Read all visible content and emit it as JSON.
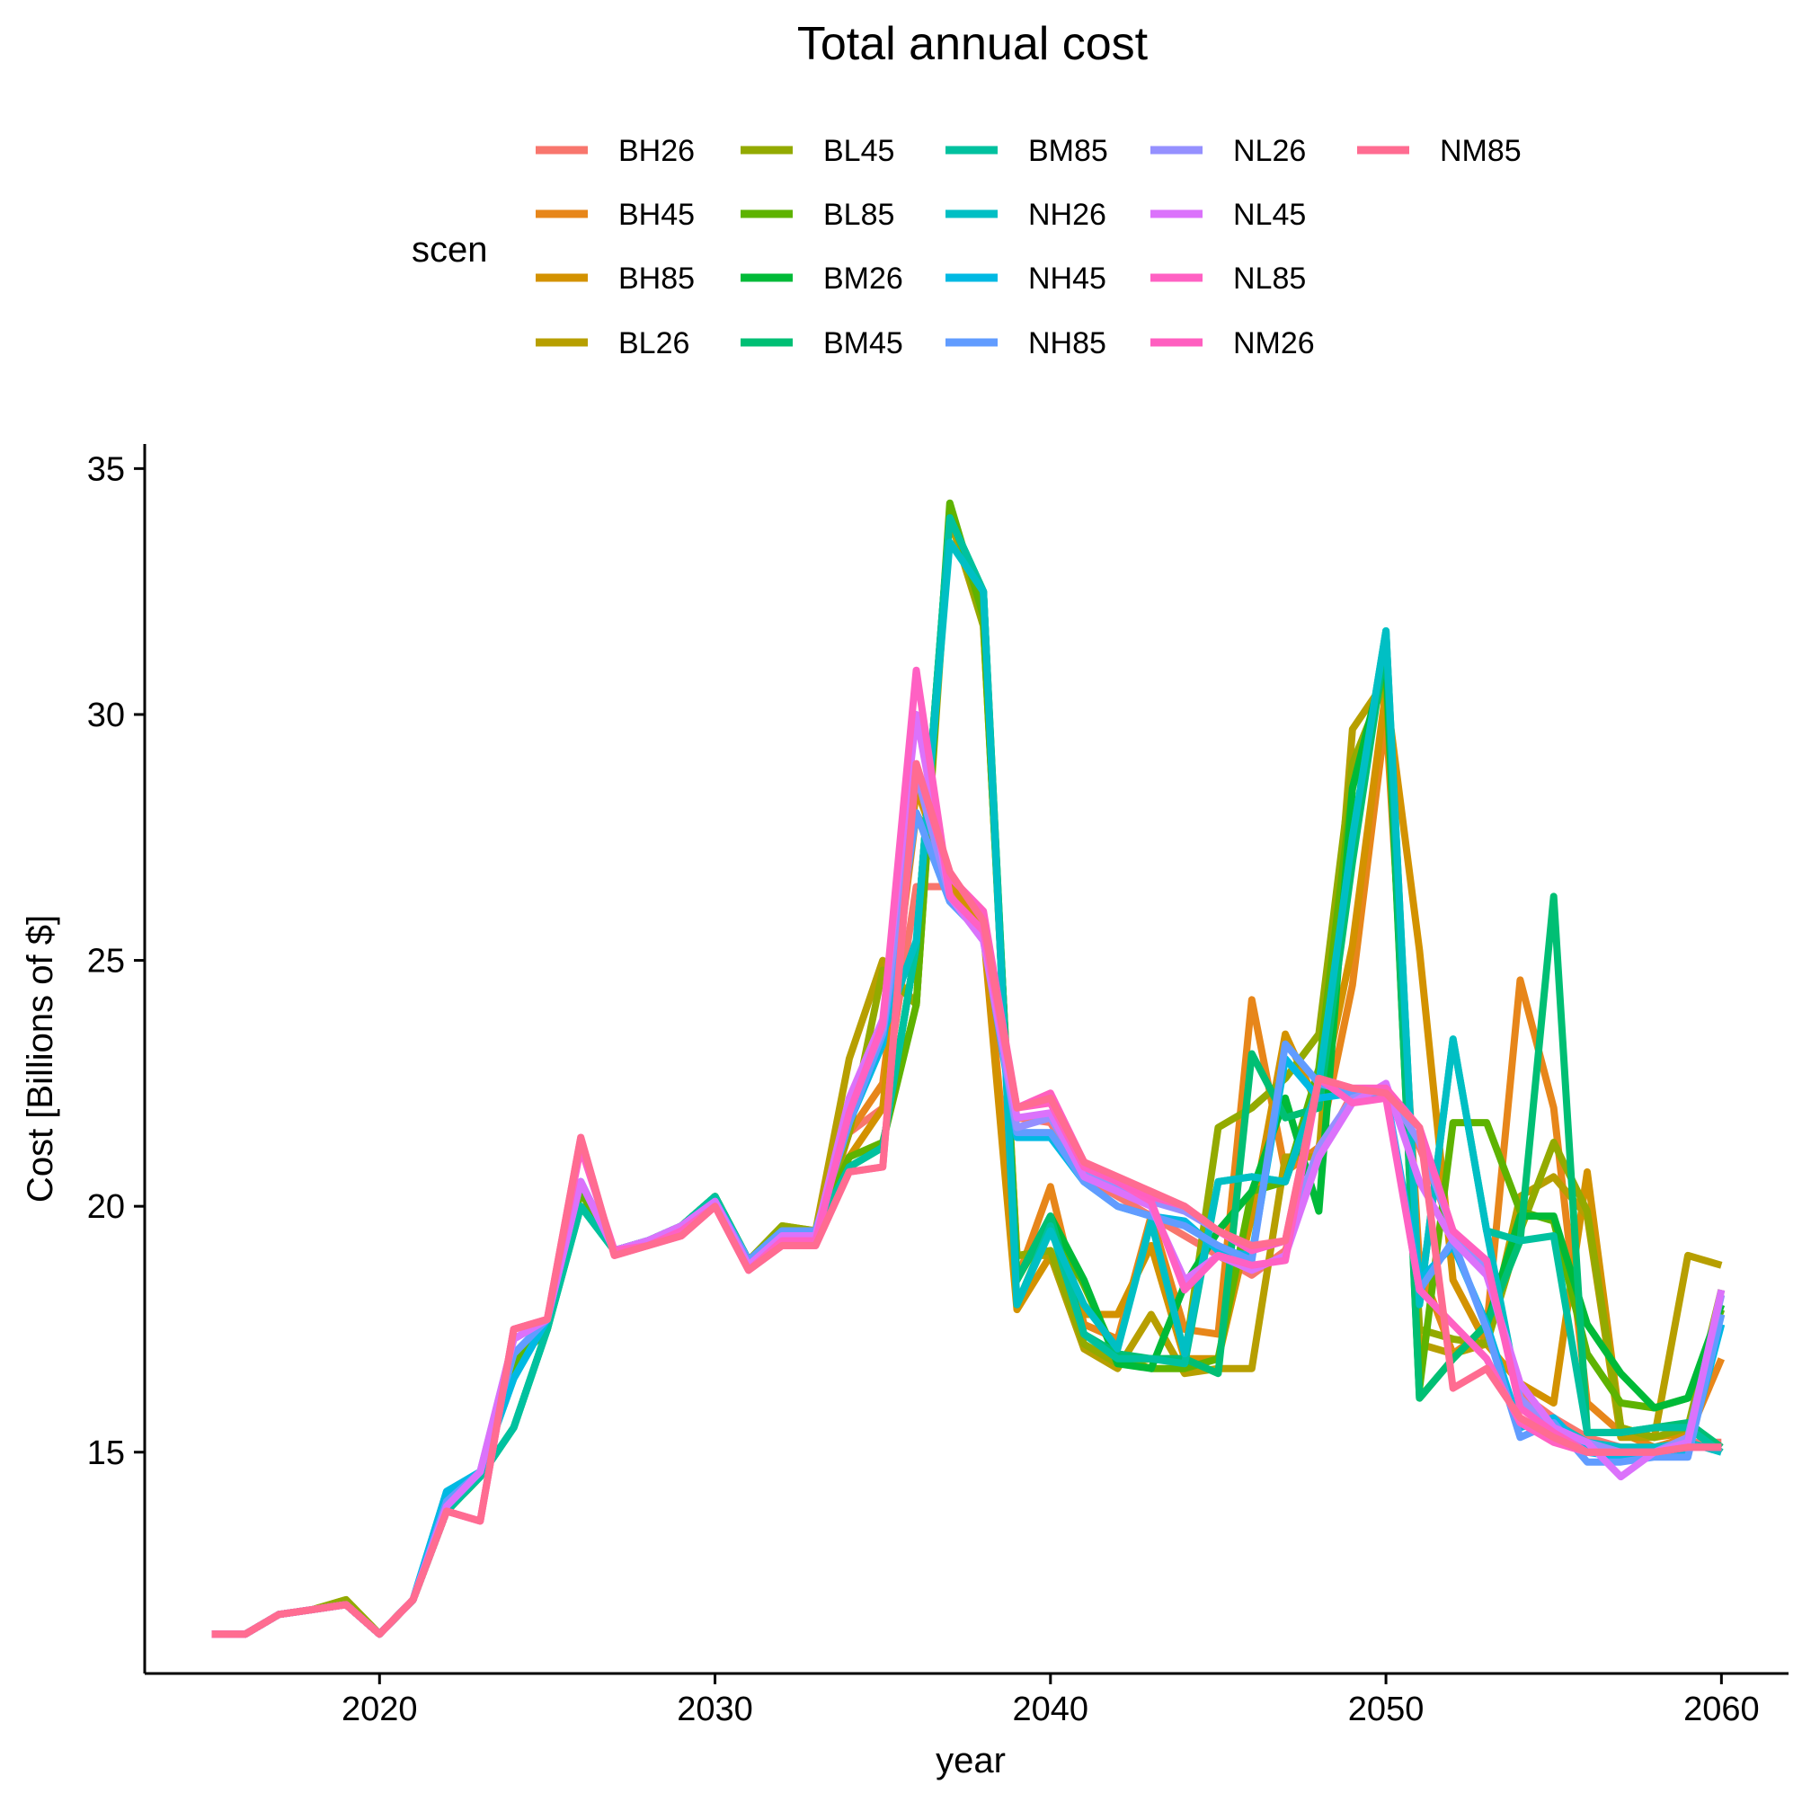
{
  "chart_data": {
    "type": "line",
    "title": "Total annual cost",
    "xlabel": "year",
    "ylabel": "Cost [Billions of $]",
    "xlim": [
      2013,
      2062
    ],
    "ylim": [
      10.5,
      35.5
    ],
    "xticks": [
      2020,
      2030,
      2040,
      2050,
      2060
    ],
    "yticks": [
      15,
      20,
      25,
      30,
      35
    ],
    "grid": false,
    "legend_title": "scen",
    "legend_placement": "top",
    "x": [
      2015,
      2016,
      2017,
      2018,
      2019,
      2020,
      2021,
      2022,
      2023,
      2024,
      2025,
      2026,
      2027,
      2028,
      2029,
      2030,
      2031,
      2032,
      2033,
      2034,
      2035,
      2036,
      2037,
      2038,
      2039,
      2040,
      2041,
      2042,
      2043,
      2044,
      2045,
      2046,
      2047,
      2048,
      2049,
      2050,
      2051,
      2052,
      2053,
      2054,
      2055,
      2056,
      2057,
      2058,
      2059,
      2060
    ],
    "series": [
      {
        "name": "BH26",
        "color": "#F8766D",
        "values": [
          11.3,
          11.3,
          11.7,
          11.8,
          11.9,
          11.3,
          12.0,
          13.8,
          14.5,
          16.8,
          17.5,
          20.3,
          19.1,
          19.2,
          19.5,
          20.0,
          18.9,
          19.3,
          19.3,
          21.5,
          22.0,
          26.5,
          26.5,
          25.8,
          21.8,
          21.7,
          20.6,
          20.2,
          19.8,
          19.4,
          19.0,
          18.6,
          19.1,
          21.0,
          22.3,
          22.3,
          21.2,
          19.5,
          18.8,
          16.2,
          15.7,
          15.3,
          15.1,
          15.1,
          15.2,
          15.2
        ]
      },
      {
        "name": "BH45",
        "color": "#E7861A",
        "values": [
          11.3,
          11.3,
          11.7,
          11.8,
          11.9,
          11.3,
          12.0,
          13.8,
          14.5,
          16.8,
          17.5,
          20.3,
          19.1,
          19.2,
          19.5,
          20.2,
          18.9,
          19.3,
          19.3,
          21.5,
          22.5,
          28.0,
          26.6,
          25.8,
          18.5,
          20.4,
          17.6,
          17.3,
          19.8,
          17.5,
          17.4,
          24.2,
          20.7,
          21.2,
          24.5,
          30.0,
          18.8,
          17.0,
          17.5,
          24.6,
          22.0,
          16.0,
          15.4,
          15.1,
          15.3,
          16.9
        ]
      },
      {
        "name": "BH85",
        "color": "#D39200",
        "values": [
          11.3,
          11.3,
          11.7,
          11.8,
          11.9,
          11.3,
          12.0,
          13.8,
          14.5,
          16.8,
          17.5,
          20.3,
          19.1,
          19.2,
          19.5,
          20.2,
          18.9,
          19.3,
          19.3,
          21.0,
          22.0,
          28.5,
          26.6,
          25.6,
          17.9,
          19.0,
          17.8,
          17.8,
          19.2,
          16.9,
          16.9,
          19.8,
          23.5,
          22.0,
          25.3,
          30.5,
          25.2,
          18.5,
          17.2,
          16.4,
          16.0,
          20.7,
          15.5,
          15.3,
          15.4,
          17.8
        ]
      },
      {
        "name": "BL26",
        "color": "#B79F00",
        "values": [
          11.3,
          11.3,
          11.7,
          11.8,
          12.0,
          11.3,
          12.0,
          13.8,
          14.5,
          16.8,
          17.5,
          20.3,
          19.1,
          19.3,
          19.6,
          20.2,
          18.9,
          19.6,
          19.5,
          23.0,
          25.0,
          24.1,
          34.0,
          31.8,
          19.0,
          19.0,
          17.1,
          16.7,
          17.8,
          16.6,
          16.7,
          16.7,
          21.0,
          21.0,
          29.7,
          30.7,
          17.2,
          17.0,
          17.2,
          20.2,
          20.6,
          19.8,
          15.3,
          15.3,
          19.0,
          18.8
        ]
      },
      {
        "name": "BL45",
        "color": "#93AA00",
        "values": [
          11.3,
          11.3,
          11.7,
          11.8,
          12.0,
          11.3,
          12.0,
          13.8,
          14.5,
          16.8,
          17.5,
          20.3,
          19.1,
          19.3,
          19.6,
          20.2,
          18.9,
          19.6,
          19.5,
          21.5,
          24.8,
          24.1,
          34.2,
          31.8,
          19.0,
          19.1,
          17.2,
          16.8,
          16.9,
          16.9,
          21.6,
          22.0,
          22.6,
          23.5,
          29.0,
          30.7,
          17.5,
          17.3,
          17.2,
          19.5,
          21.3,
          19.9,
          15.5,
          15.3,
          15.5,
          18.3
        ]
      },
      {
        "name": "BL85",
        "color": "#5EB300",
        "values": [
          11.3,
          11.3,
          11.7,
          11.8,
          11.9,
          11.3,
          12.0,
          13.8,
          14.5,
          16.8,
          17.5,
          20.3,
          19.1,
          19.3,
          19.6,
          20.2,
          18.9,
          19.5,
          19.5,
          21.0,
          21.3,
          24.1,
          34.3,
          32.0,
          18.5,
          19.7,
          18.4,
          16.9,
          16.7,
          16.7,
          16.9,
          20.3,
          20.5,
          22.8,
          28.5,
          31.0,
          16.3,
          21.7,
          21.7,
          19.9,
          19.7,
          17.0,
          16.0,
          15.9,
          16.1,
          17.9
        ]
      },
      {
        "name": "BM26",
        "color": "#00BA38",
        "values": [
          11.3,
          11.3,
          11.7,
          11.8,
          11.9,
          11.3,
          12.0,
          13.8,
          14.5,
          15.5,
          17.5,
          20.0,
          19.1,
          19.3,
          19.6,
          20.2,
          18.9,
          19.5,
          19.5,
          20.8,
          21.2,
          25.3,
          34.0,
          32.5,
          18.5,
          19.8,
          18.5,
          16.8,
          16.7,
          18.4,
          19.5,
          20.3,
          22.2,
          19.9,
          28.5,
          31.2,
          16.1,
          16.9,
          17.6,
          19.8,
          19.8,
          17.6,
          16.6,
          15.9,
          16.1,
          18.0
        ]
      },
      {
        "name": "BM45",
        "color": "#00BF74",
        "values": [
          11.3,
          11.3,
          11.7,
          11.8,
          11.9,
          11.3,
          12.0,
          13.8,
          14.5,
          15.5,
          17.5,
          20.0,
          19.1,
          19.3,
          19.6,
          20.2,
          18.9,
          19.5,
          19.5,
          20.8,
          21.2,
          25.3,
          34.0,
          32.5,
          18.5,
          19.8,
          17.4,
          17.0,
          16.9,
          16.9,
          16.6,
          23.1,
          21.8,
          22.0,
          27.0,
          31.5,
          16.1,
          16.9,
          17.6,
          19.3,
          26.3,
          15.4,
          15.4,
          15.5,
          15.6,
          15.1
        ]
      },
      {
        "name": "BM85",
        "color": "#00C19F",
        "values": [
          11.3,
          11.3,
          11.7,
          11.8,
          11.9,
          11.3,
          12.0,
          13.8,
          14.5,
          15.5,
          17.5,
          20.0,
          19.1,
          19.3,
          19.6,
          20.2,
          18.9,
          19.5,
          19.5,
          20.8,
          21.2,
          25.3,
          34.0,
          32.5,
          18.0,
          19.6,
          17.4,
          16.9,
          16.9,
          16.8,
          20.5,
          20.6,
          20.5,
          22.5,
          27.5,
          31.7,
          18.0,
          23.4,
          19.5,
          19.3,
          19.4,
          15.4,
          15.4,
          15.5,
          15.5,
          15.0
        ]
      },
      {
        "name": "NH26",
        "color": "#00BFC4",
        "values": [
          11.3,
          11.3,
          11.7,
          11.8,
          11.9,
          11.3,
          12.0,
          14.2,
          14.6,
          16.5,
          17.7,
          20.5,
          19.1,
          19.3,
          19.6,
          20.1,
          18.9,
          19.5,
          19.5,
          21.7,
          23.5,
          25.4,
          33.5,
          32.5,
          18.0,
          19.5,
          18.0,
          17.1,
          19.7,
          17.0,
          20.5,
          20.6,
          20.5,
          22.5,
          27.5,
          31.7,
          18.0,
          23.4,
          19.5,
          16.0,
          15.6,
          15.2,
          15.1,
          15.1,
          15.2,
          15.0
        ]
      },
      {
        "name": "NH45",
        "color": "#00B9E3",
        "values": [
          11.3,
          11.3,
          11.7,
          11.8,
          11.9,
          11.3,
          12.0,
          14.2,
          14.6,
          16.5,
          17.7,
          20.5,
          19.1,
          19.3,
          19.6,
          20.1,
          18.9,
          19.5,
          19.5,
          21.7,
          23.3,
          28.0,
          26.2,
          25.5,
          21.4,
          21.4,
          20.5,
          20.0,
          19.8,
          19.7,
          19.1,
          19.0,
          23.0,
          22.2,
          22.3,
          22.3,
          18.5,
          19.2,
          17.6,
          15.5,
          15.7,
          15.0,
          14.9,
          15.0,
          15.0,
          17.6
        ]
      },
      {
        "name": "NH85",
        "color": "#619CFF",
        "values": [
          11.3,
          11.3,
          11.7,
          11.8,
          11.9,
          11.3,
          12.0,
          14.0,
          14.6,
          17.0,
          17.7,
          20.5,
          19.1,
          19.3,
          19.6,
          20.1,
          18.9,
          19.5,
          19.5,
          21.7,
          23.5,
          28.0,
          26.2,
          25.5,
          21.5,
          21.5,
          20.5,
          20.0,
          19.8,
          19.6,
          19.2,
          18.9,
          23.3,
          22.5,
          22.3,
          22.3,
          18.3,
          19.3,
          17.5,
          15.3,
          15.6,
          14.8,
          14.8,
          14.9,
          14.9,
          17.8
        ]
      },
      {
        "name": "NL26",
        "color": "#9590FF",
        "values": [
          11.3,
          11.3,
          11.7,
          11.8,
          11.9,
          11.3,
          12.0,
          13.9,
          14.6,
          17.3,
          17.7,
          20.5,
          19.1,
          19.3,
          19.6,
          20.1,
          18.8,
          19.4,
          19.4,
          22.0,
          23.6,
          28.8,
          26.3,
          25.4,
          21.6,
          21.8,
          20.7,
          20.4,
          20.1,
          19.9,
          19.5,
          19.1,
          19.3,
          21.2,
          22.2,
          22.4,
          21.3,
          19.5,
          18.7,
          16.1,
          15.4,
          15.2,
          15.0,
          15.0,
          15.3,
          18.2
        ]
      },
      {
        "name": "NL45",
        "color": "#DB72FB",
        "values": [
          11.3,
          11.3,
          11.7,
          11.8,
          11.9,
          11.3,
          12.0,
          13.9,
          14.6,
          17.3,
          17.7,
          20.5,
          19.1,
          19.3,
          19.6,
          20.1,
          18.8,
          19.4,
          19.4,
          22.2,
          23.8,
          30.0,
          26.3,
          25.4,
          21.8,
          21.9,
          20.6,
          20.3,
          20.0,
          18.5,
          19.0,
          18.7,
          19.0,
          21.0,
          22.1,
          22.5,
          20.5,
          19.3,
          18.6,
          16.4,
          15.5,
          15.2,
          14.5,
          15.0,
          15.2,
          18.3
        ]
      },
      {
        "name": "NL85",
        "color": "#FF61C3",
        "values": [
          11.3,
          11.3,
          11.7,
          11.8,
          11.9,
          11.3,
          12.0,
          13.8,
          13.6,
          17.5,
          17.7,
          21.2,
          19.1,
          19.2,
          19.5,
          20.0,
          18.7,
          19.3,
          19.3,
          21.9,
          23.7,
          30.9,
          26.3,
          25.6,
          22.0,
          22.1,
          20.8,
          20.5,
          20.1,
          18.3,
          19.0,
          18.8,
          18.9,
          22.6,
          22.1,
          22.2,
          18.3,
          17.6,
          16.9,
          15.6,
          15.2,
          15.0,
          15.0,
          15.0,
          15.1,
          15.1
        ]
      },
      {
        "name": "NM26",
        "color": "#FF5FC0",
        "values": [
          11.3,
          11.3,
          11.7,
          11.8,
          11.9,
          11.3,
          12.0,
          13.8,
          13.6,
          17.5,
          17.7,
          21.4,
          19.0,
          19.2,
          19.4,
          20.0,
          18.7,
          19.2,
          19.2,
          20.7,
          20.8,
          29.0,
          26.7,
          26.0,
          22.0,
          22.3,
          20.9,
          20.5,
          20.2,
          20.0,
          19.5,
          19.1,
          19.3,
          22.6,
          22.4,
          22.4,
          21.6,
          19.5,
          18.9,
          15.9,
          15.4,
          15.0,
          15.0,
          15.0,
          15.1,
          15.1
        ]
      },
      {
        "name": "NM85",
        "color": "#FF6C91",
        "values": [
          11.3,
          11.3,
          11.7,
          11.8,
          11.9,
          11.3,
          12.0,
          13.8,
          13.6,
          17.5,
          17.7,
          21.4,
          19.0,
          19.2,
          19.4,
          20.0,
          18.7,
          19.2,
          19.2,
          20.7,
          20.8,
          29.0,
          26.8,
          25.8,
          22.0,
          22.2,
          20.9,
          20.6,
          20.3,
          20.0,
          19.5,
          19.2,
          19.3,
          22.6,
          22.4,
          22.3,
          21.6,
          16.3,
          16.7,
          15.7,
          15.3,
          15.0,
          15.0,
          15.0,
          15.1,
          15.1
        ]
      }
    ]
  }
}
